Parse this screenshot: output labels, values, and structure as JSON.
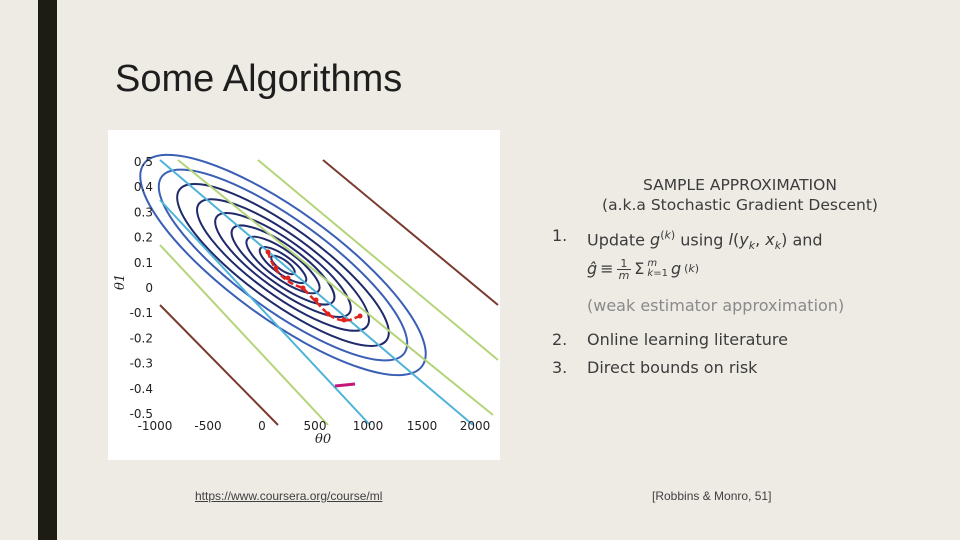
{
  "slide": {
    "title": "Some Algorithms",
    "source_link": "https://www.coursera.org/course/ml",
    "citation": "[Robbins & Monro, 51]"
  },
  "plot": {
    "y_ticks": [
      "0.5",
      "0.4",
      "0.3",
      "0.2",
      "0.1",
      "0",
      "-0.1",
      "-0.2",
      "-0.3",
      "-0.4",
      "-0.5"
    ],
    "x_ticks": [
      "-1000",
      "-500",
      "0",
      "500",
      "1000",
      "1500",
      "2000"
    ],
    "xlabel": "θ0",
    "ylabel": "θ1",
    "path_color": "#e0231c",
    "marker_color": "#c2187a",
    "contour_colors": [
      "#1f2a6b",
      "#3a5fb5",
      "#4fb3d9",
      "#b4d47a",
      "#7a3b2e"
    ]
  },
  "text": {
    "heading": "SAMPLE APPROXIMATION",
    "subheading": "(a.k.a Stochastic Gradient Descent)",
    "items": [
      {
        "num": "1.",
        "line1_pre": "Update ",
        "line1_mid": " using ",
        "line1_post": " and"
      },
      {
        "num": "2.",
        "label": "Online learning literature"
      },
      {
        "num": "3.",
        "label": "Direct bounds on risk"
      }
    ],
    "weak": "(weak estimator approximation)"
  }
}
